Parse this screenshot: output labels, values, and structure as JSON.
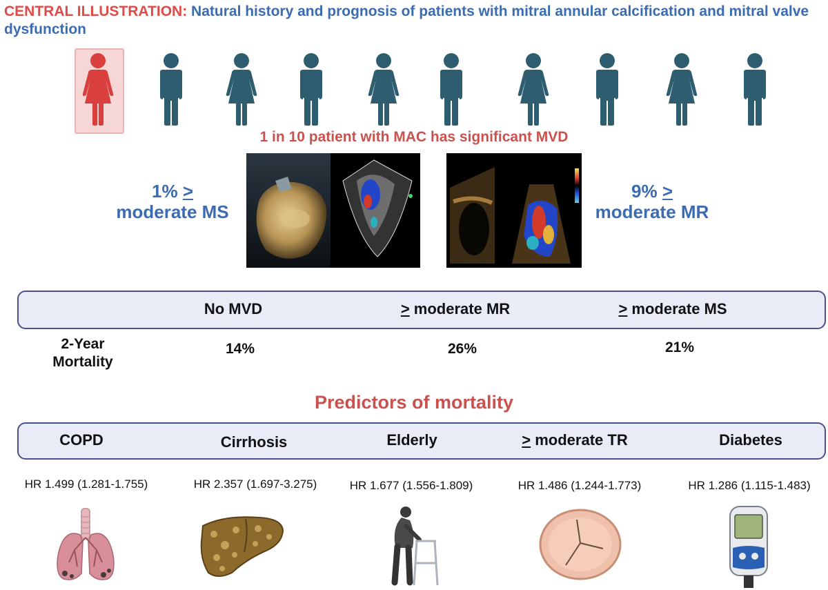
{
  "header": {
    "title_lead": "CENTRAL ILLUSTRATION:",
    "title_rest": "Natural history and prognosis of patients with mitral annular calcification and mitral valve dysfunction"
  },
  "icons": [
    "female-figure-icon",
    "male-figure-icon",
    "female-figure-icon",
    "male-figure-icon",
    "female-figure-icon",
    "male-figure-icon",
    "female-figure-icon",
    "male-figure-icon",
    "female-figure-icon",
    "male-figure-icon"
  ],
  "colors": {
    "accent_red": "#e04a47",
    "figure_blue": "#2e5d6f",
    "text_blue": "#3b6bb0",
    "band_fill": "#e9ebf7",
    "band_border": "#4a4f8c"
  },
  "prevalence": {
    "tagline": "1 in 10 patient with MAC has significant MVD",
    "left": {
      "pct": "1%",
      "sym": ">",
      "label": "moderate MS"
    },
    "right": {
      "pct": "9%",
      "sym": ">",
      "label": "moderate MR"
    }
  },
  "mortality_table": {
    "row_label_line1": "2-Year",
    "row_label_line2": "Mortality",
    "columns": [
      {
        "prefix": "",
        "label": "No MVD",
        "value": "14%"
      },
      {
        "prefix": ">",
        "label": " moderate MR",
        "value": "26%"
      },
      {
        "prefix": ">",
        "label": " moderate MS",
        "value": "21%"
      }
    ]
  },
  "predictors": {
    "title": "Predictors of mortality",
    "items": [
      {
        "prefix": "",
        "label": "COPD",
        "hr": "HR 1.499 (1.281-1.755)"
      },
      {
        "prefix": "",
        "label": "Cirrhosis",
        "hr": "HR 2.357 (1.697-3.275)"
      },
      {
        "prefix": "",
        "label": "Elderly",
        "hr": "HR 1.677 (1.556-1.809)"
      },
      {
        "prefix": ">",
        "label": " moderate TR",
        "hr": "HR 1.486 (1.244-1.773)"
      },
      {
        "prefix": "",
        "label": "Diabetes",
        "hr": "HR 1.286 (1.115-1.483)"
      }
    ]
  }
}
